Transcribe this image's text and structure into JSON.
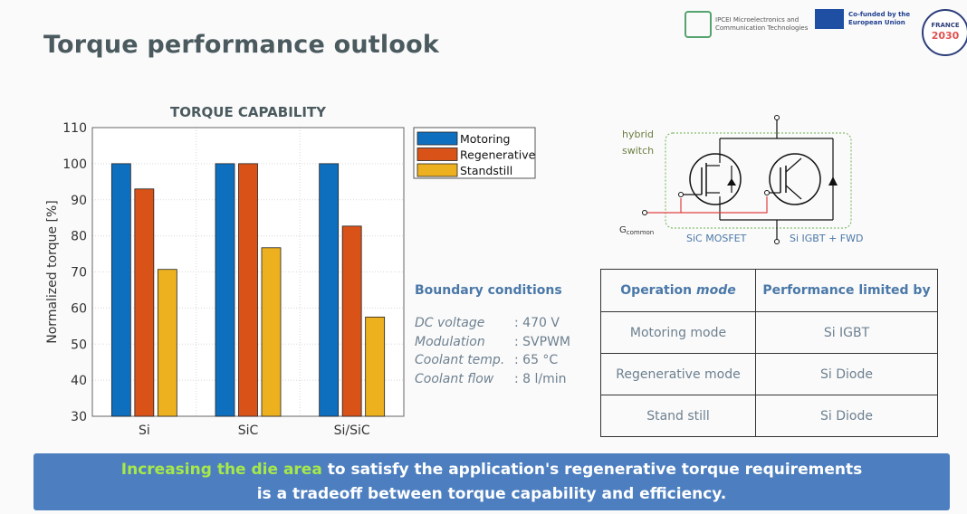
{
  "page": {
    "title": "Torque performance outlook"
  },
  "logos": {
    "ipcei": "IPCEI Microelectronics and Communication Technologies",
    "eu": "Co-funded by the European Union",
    "france_top": "FRANCE",
    "france_bottom": "2030"
  },
  "colors": {
    "motoring": "#0f6fbf",
    "regenerative": "#d95319",
    "standstill": "#edb120"
  },
  "chart_data": {
    "type": "bar",
    "title": "TORQUE CAPABILITY",
    "xlabel": "",
    "ylabel": "Normalized torque [%]",
    "ylim": [
      30,
      110
    ],
    "yticks": [
      30,
      40,
      50,
      60,
      70,
      80,
      90,
      100,
      110
    ],
    "grid": true,
    "legend": "top-right",
    "categories": [
      "Si",
      "SiC",
      "Si/SiC"
    ],
    "series": [
      {
        "name": "Motoring",
        "values": [
          100,
          100,
          100
        ]
      },
      {
        "name": "Regenerative",
        "values": [
          93,
          100,
          82.7
        ]
      },
      {
        "name": "Standstill",
        "values": [
          70.7,
          76.7,
          57.5
        ]
      }
    ]
  },
  "boundary": {
    "title": "Boundary conditions",
    "rows": [
      {
        "key": "DC voltage",
        "value": ": 470 V"
      },
      {
        "key": "Modulation",
        "value": ": SVPWM"
      },
      {
        "key": "Coolant temp.",
        "value": ": 65 °C"
      },
      {
        "key": "Coolant flow",
        "value": ": 8 l/min"
      }
    ]
  },
  "circuit": {
    "hybrid": "hybrid",
    "switch": "switch",
    "g": "G",
    "g_sub": "common",
    "sic": "SiC MOSFET",
    "igbt": "Si IGBT + FWD"
  },
  "table": {
    "header1": "Operation",
    "header1_em": "mode",
    "header2": "Performance limited by",
    "rows": [
      {
        "mode": "Motoring mode",
        "limit": "Si IGBT"
      },
      {
        "mode": "Regenerative mode",
        "limit": "Si Diode"
      },
      {
        "mode": "Stand still",
        "limit": "Si Diode"
      }
    ]
  },
  "banner": {
    "highlight": "Increasing the die area",
    "line1": " to satisfy the application's regenerative torque requirements",
    "line2": "is a tradeoff between torque capability and efficiency."
  }
}
